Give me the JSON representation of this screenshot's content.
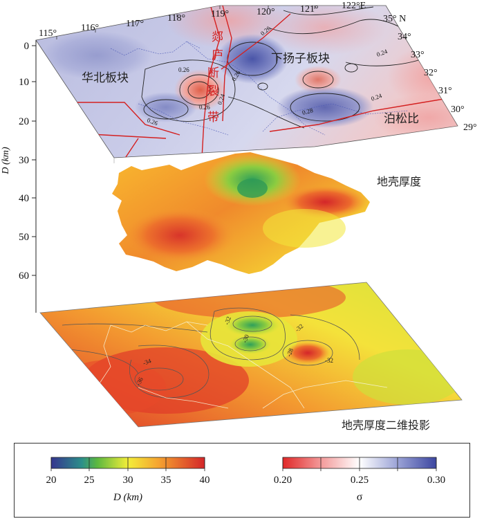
{
  "top_layer": {
    "lon_labels": [
      "115°",
      "116°",
      "117°",
      "118°",
      "119°",
      "120°",
      "121°",
      "122°E"
    ],
    "lat_labels": [
      "35° N",
      "34°",
      "33°",
      "32°",
      "31°",
      "30°",
      "29°"
    ],
    "region_labels": {
      "north_china": "华北板块",
      "lower_yangtze": "下扬子板块",
      "tanlu_chars": [
        "郯",
        "庐",
        "断",
        "裂",
        "带"
      ],
      "poisson": "泊松比"
    },
    "contour_labels": [
      "0.26",
      "0.26",
      "0.24",
      "0.24",
      "0.24",
      "0.26",
      "0.26",
      "0.28",
      "0.26"
    ]
  },
  "depth_axis": {
    "label": "D (km)",
    "ticks": [
      "0",
      "10",
      "20",
      "30",
      "40",
      "50",
      "60"
    ]
  },
  "middle_layer": {
    "label": "地壳厚度"
  },
  "bottom_layer": {
    "label": "地壳厚度二维投影",
    "contour_labels": [
      "-32",
      "-30",
      "-32",
      "-28",
      "-32",
      "-34",
      "-36"
    ]
  },
  "legend": {
    "depth": {
      "ticks": [
        "20",
        "25",
        "30",
        "35",
        "40"
      ],
      "label": "D (km)",
      "colors": [
        "#35358f",
        "#2ea06a",
        "#9bd24a",
        "#f3ee3a",
        "#f09830",
        "#d4262a"
      ]
    },
    "sigma": {
      "ticks": [
        "0.20",
        "0.25",
        "0.30"
      ],
      "label": "σ",
      "colors": [
        "#e02828",
        "#f6c7c7",
        "#ffffff",
        "#c9c9e6",
        "#3c46a0"
      ]
    }
  }
}
